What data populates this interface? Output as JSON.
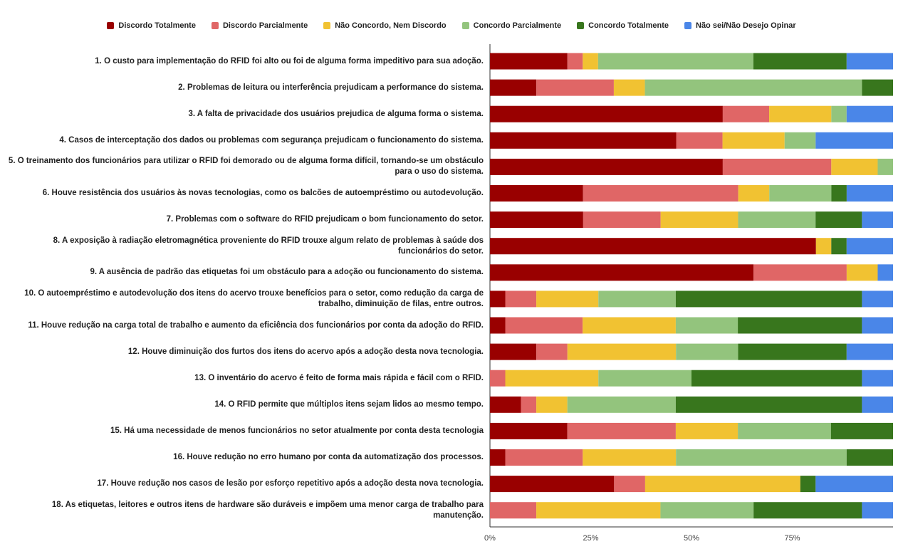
{
  "chart_data": {
    "type": "bar",
    "orientation": "horizontal",
    "stacked": true,
    "normalized": true,
    "legend_position": "top",
    "xlim": [
      0,
      100
    ],
    "xticks": [
      {
        "value": 0,
        "label": "0%"
      },
      {
        "value": 25,
        "label": "25%"
      },
      {
        "value": 50,
        "label": "50%"
      },
      {
        "value": 75,
        "label": "75%"
      }
    ],
    "categories": [
      "1. O custo para implementação do RFID foi alto ou foi de alguma forma impeditivo para sua adoção.",
      "2. Problemas de leitura ou interferência prejudicam a performance do sistema.",
      "3. A falta de privacidade dos usuários prejudica de alguma forma o sistema.",
      "4. Casos de interceptação dos dados ou problemas com segurança prejudicam o funcionamento do sistema.",
      "5. O treinamento dos funcionários para utilizar o RFID foi demorado ou de alguma forma difícil, tornando-se um obstáculo para o uso do sistema.",
      "6. Houve resistência dos usuários às novas tecnologias, como os balcões de autoempréstimo ou autodevolução.",
      "7. Problemas com o software do RFID prejudicam o bom funcionamento do setor.",
      "8. A exposição à radiação eletromagnética proveniente do RFID trouxe algum relato de problemas à saúde dos funcionários do setor.",
      "9. A ausência de padrão das etiquetas foi um obstáculo para a adoção ou funcionamento do sistema.",
      "10. O autoempréstimo e autodevolução dos itens do acervo trouxe benefícios para o setor, como redução da carga de trabalho, diminuição de filas, entre outros.",
      "11. Houve redução na carga total de trabalho e aumento da eficiência dos funcionários por conta da adoção do RFID.",
      "12. Houve diminuição dos furtos dos itens do acervo após a adoção desta nova tecnologia.",
      "13. O inventário do acervo é feito de forma mais rápida e fácil com o RFID.",
      "14. O RFID permite que múltiplos itens sejam lidos ao mesmo tempo.",
      "15. Há uma necessidade de menos funcionários no setor atualmente por conta desta tecnologia",
      "16. Houve redução no erro humano por conta da automatização dos processos.",
      "17. Houve redução nos casos de lesão por esforço repetitivo após a adoção desta nova tecnologia.",
      "18. As etiquetas, leitores e outros itens de hardware são duráveis e impõem uma menor carga de trabalho para manutenção."
    ],
    "series": [
      {
        "name": "Discordo Totalmente",
        "color": "#990000",
        "values": [
          19.2,
          11.5,
          57.7,
          46.2,
          57.7,
          23.1,
          23.1,
          80.8,
          65.4,
          3.8,
          3.8,
          11.5,
          0,
          7.7,
          19.2,
          3.8,
          30.8,
          0
        ]
      },
      {
        "name": "Discordo Parcialmente",
        "color": "#e06666",
        "values": [
          3.8,
          19.2,
          11.5,
          11.5,
          26.9,
          38.5,
          19.2,
          0,
          23.1,
          7.7,
          19.2,
          7.7,
          3.8,
          3.8,
          26.9,
          19.2,
          7.7,
          11.5
        ]
      },
      {
        "name": "Não Concordo, Nem Discordo",
        "color": "#f1c232",
        "values": [
          3.8,
          7.7,
          15.4,
          15.4,
          11.5,
          7.7,
          19.2,
          3.8,
          7.7,
          15.4,
          23.1,
          26.9,
          23.1,
          7.7,
          15.4,
          23.1,
          38.5,
          30.8
        ]
      },
      {
        "name": "Concordo Parcialmente",
        "color": "#93c47d",
        "values": [
          38.5,
          53.8,
          3.8,
          7.7,
          3.8,
          15.4,
          19.2,
          0,
          0,
          19.2,
          15.4,
          15.4,
          23.1,
          26.9,
          23.1,
          42.3,
          0,
          23.1
        ]
      },
      {
        "name": "Concordo Totalmente",
        "color": "#38761d",
        "values": [
          23.1,
          7.7,
          0,
          0,
          0,
          3.8,
          11.5,
          3.8,
          0,
          46.2,
          30.8,
          26.9,
          42.3,
          46.2,
          15.4,
          11.5,
          3.8,
          26.9
        ]
      },
      {
        "name": "Não sei/Não Desejo Opinar",
        "color": "#4a86e8",
        "values": [
          11.5,
          0,
          11.5,
          19.2,
          0,
          11.5,
          7.7,
          11.5,
          3.8,
          7.7,
          7.7,
          11.5,
          7.7,
          7.7,
          0,
          0,
          19.2,
          7.7
        ]
      }
    ]
  }
}
